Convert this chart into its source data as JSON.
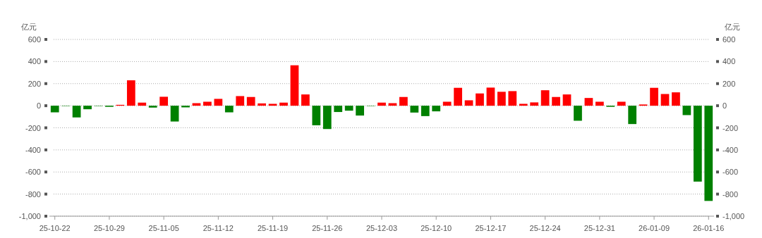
{
  "chart_data": {
    "type": "bar",
    "ylabel": "亿元",
    "y2label": "亿元",
    "categories": [
      "25-10-22",
      null,
      null,
      null,
      null,
      "25-10-29",
      null,
      null,
      null,
      null,
      "25-11-05",
      null,
      null,
      null,
      null,
      "25-11-12",
      null,
      null,
      null,
      null,
      "25-11-19",
      null,
      null,
      null,
      null,
      "25-11-26",
      null,
      null,
      null,
      null,
      "25-12-03",
      null,
      null,
      null,
      null,
      "25-12-10",
      null,
      null,
      null,
      null,
      "25-12-17",
      null,
      null,
      null,
      null,
      "25-12-24",
      null,
      null,
      null,
      null,
      "25-12-31",
      null,
      null,
      null,
      null,
      "26-01-09",
      null,
      null,
      null,
      null,
      "26-01-16"
    ],
    "values": [
      -60,
      -3,
      -106,
      -32,
      -3,
      -10,
      8,
      230,
      28,
      -17,
      81,
      -143,
      -15,
      23,
      36,
      62,
      -60,
      87,
      79,
      21,
      17,
      28,
      366,
      102,
      -177,
      -211,
      -57,
      -45,
      -89,
      -2,
      28,
      23,
      79,
      -62,
      -94,
      -51,
      36,
      162,
      49,
      111,
      164,
      126,
      132,
      17,
      30,
      140,
      79,
      102,
      -136,
      70,
      36,
      -10,
      36,
      -166,
      11,
      162,
      106,
      121,
      -85,
      -687,
      -862
    ],
    "colors": [
      "#008000",
      "#008000",
      "#008000",
      "#008000",
      "#008000",
      "#008000",
      "#ff0000",
      "#ff0000",
      "#ff0000",
      "#008000",
      "#ff0000",
      "#008000",
      "#008000",
      "#ff0000",
      "#ff0000",
      "#ff0000",
      "#008000",
      "#ff0000",
      "#ff0000",
      "#ff0000",
      "#ff0000",
      "#ff0000",
      "#ff0000",
      "#ff0000",
      "#008000",
      "#008000",
      "#008000",
      "#008000",
      "#008000",
      "#008000",
      "#ff0000",
      "#ff0000",
      "#ff0000",
      "#008000",
      "#008000",
      "#008000",
      "#ff0000",
      "#ff0000",
      "#ff0000",
      "#ff0000",
      "#ff0000",
      "#ff0000",
      "#ff0000",
      "#ff0000",
      "#ff0000",
      "#ff0000",
      "#ff0000",
      "#ff0000",
      "#008000",
      "#ff0000",
      "#ff0000",
      "#008000",
      "#ff0000",
      "#008000",
      "#ff0000",
      "#ff0000",
      "#ff0000",
      "#ff0000",
      "#008000",
      "#008000",
      "#008000"
    ],
    "ylim": [
      -1000,
      600
    ],
    "yticks": [
      {
        "value": -1000,
        "label": "-1,000"
      },
      -800,
      -600,
      -400,
      -200,
      0,
      200,
      400,
      600
    ],
    "y2lim": [
      -1000,
      600
    ],
    "y2ticks": [
      {
        "value": -1000,
        "label": "-1,000"
      },
      -800,
      -600,
      -400,
      -200,
      0,
      200,
      400,
      600
    ],
    "grid": "y"
  }
}
